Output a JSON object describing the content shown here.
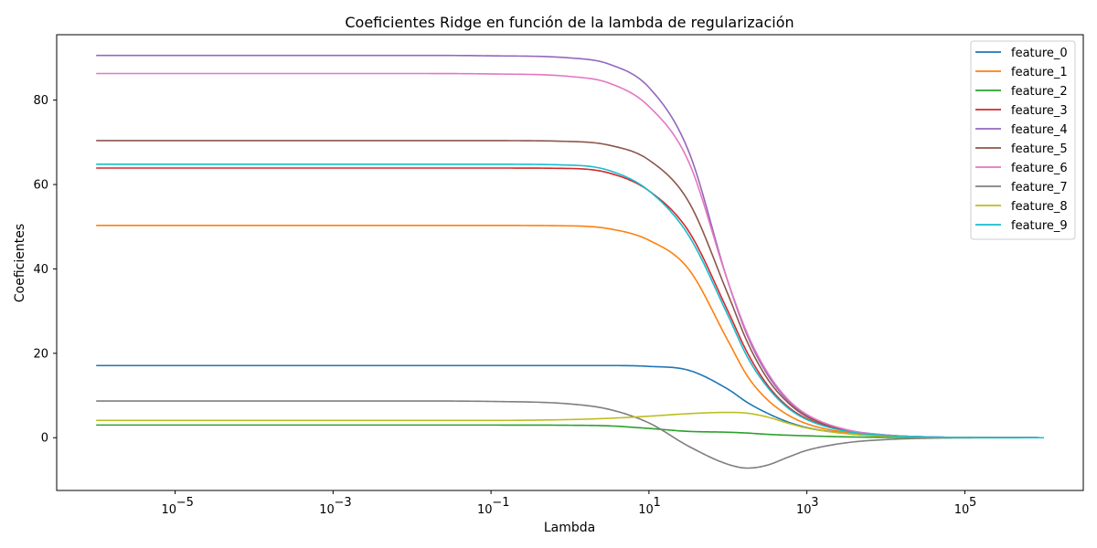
{
  "chart_data": {
    "type": "line",
    "title": "Coeficientes Ridge en función de la lambda de regularización",
    "xlabel": "Lambda",
    "ylabel": "Coeficientes",
    "xscale": "log",
    "xlim_log10": [
      -6.5,
      6.5
    ],
    "ylim": [
      -12.5,
      95.5
    ],
    "x_ticks_log10": [
      -5,
      -3,
      -1,
      1,
      3,
      5
    ],
    "x_tick_labels": [
      "10",
      "10",
      "10",
      "10",
      "10",
      "10"
    ],
    "x_tick_exponents": [
      "−5",
      "−3",
      "−1",
      "1",
      "3",
      "5"
    ],
    "y_ticks": [
      0,
      20,
      40,
      60,
      80
    ],
    "y_tick_labels": [
      "0",
      "20",
      "40",
      "60",
      "80"
    ],
    "grid": false,
    "legend_position": "top-right",
    "x_log10": [
      -6,
      -5,
      -4,
      -3,
      -2,
      -1,
      0,
      0.5,
      1,
      1.5,
      2,
      2.25,
      2.5,
      2.75,
      3,
      3.5,
      4,
      4.5,
      5,
      5.5,
      6
    ],
    "series": [
      {
        "name": "feature_0",
        "color": "#1f77b4",
        "values": [
          17.1,
          17.1,
          17.1,
          17.1,
          17.1,
          17.1,
          17.1,
          17.1,
          16.9,
          16.0,
          11.5,
          8.3,
          5.8,
          3.8,
          2.4,
          1.0,
          0.4,
          0.12,
          0.04,
          0.01,
          0
        ]
      },
      {
        "name": "feature_1",
        "color": "#ff7f0e",
        "values": [
          50.3,
          50.3,
          50.3,
          50.3,
          50.3,
          50.3,
          50.2,
          49.5,
          46.8,
          40.0,
          23.0,
          14.5,
          9.0,
          5.5,
          3.3,
          1.2,
          0.45,
          0.13,
          0.04,
          0.01,
          0
        ]
      },
      {
        "name": "feature_2",
        "color": "#2ca02c",
        "values": [
          3.0,
          3.0,
          3.0,
          3.0,
          3.0,
          3.0,
          2.95,
          2.8,
          2.2,
          1.5,
          1.3,
          1.1,
          0.8,
          0.6,
          0.45,
          0.2,
          0.08,
          0.03,
          0.01,
          0,
          0
        ]
      },
      {
        "name": "feature_3",
        "color": "#d62728",
        "values": [
          63.9,
          63.9,
          63.9,
          63.9,
          63.9,
          63.9,
          63.8,
          62.7,
          58.5,
          49.0,
          30.0,
          20.0,
          12.5,
          7.5,
          4.5,
          1.6,
          0.55,
          0.18,
          0.05,
          0.015,
          0
        ]
      },
      {
        "name": "feature_4",
        "color": "#9467bd",
        "values": [
          90.6,
          90.6,
          90.6,
          90.6,
          90.6,
          90.5,
          90.0,
          88.5,
          83.0,
          68.0,
          37.0,
          24.0,
          15.0,
          9.0,
          5.3,
          1.9,
          0.65,
          0.21,
          0.06,
          0.02,
          0
        ]
      },
      {
        "name": "feature_5",
        "color": "#8c564b",
        "values": [
          70.4,
          70.4,
          70.4,
          70.4,
          70.4,
          70.4,
          70.2,
          69.3,
          65.8,
          56.0,
          34.0,
          22.5,
          14.0,
          8.5,
          5.0,
          1.8,
          0.6,
          0.2,
          0.06,
          0.02,
          0
        ]
      },
      {
        "name": "feature_6",
        "color": "#e377c2",
        "values": [
          86.3,
          86.3,
          86.3,
          86.3,
          86.3,
          86.2,
          85.6,
          84.0,
          78.5,
          65.5,
          37.0,
          24.5,
          15.5,
          9.3,
          5.5,
          1.9,
          0.65,
          0.21,
          0.06,
          0.02,
          0
        ]
      },
      {
        "name": "feature_7",
        "color": "#7f7f7f",
        "values": [
          8.7,
          8.7,
          8.7,
          8.7,
          8.7,
          8.6,
          8.0,
          6.7,
          3.5,
          -2.0,
          -6.3,
          -7.2,
          -6.5,
          -4.7,
          -3.0,
          -1.2,
          -0.45,
          -0.14,
          -0.04,
          -0.01,
          0
        ]
      },
      {
        "name": "feature_8",
        "color": "#bcbd22",
        "values": [
          4.1,
          4.1,
          4.1,
          4.1,
          4.1,
          4.1,
          4.3,
          4.6,
          5.1,
          5.7,
          6.0,
          5.8,
          4.9,
          3.5,
          2.3,
          0.95,
          0.35,
          0.11,
          0.03,
          0.01,
          0
        ]
      },
      {
        "name": "feature_9",
        "color": "#17becf",
        "values": [
          64.8,
          64.8,
          64.8,
          64.8,
          64.8,
          64.8,
          64.6,
          63.3,
          58.5,
          48.0,
          29.0,
          19.0,
          12.0,
          7.2,
          4.3,
          1.5,
          0.55,
          0.17,
          0.05,
          0.015,
          0
        ]
      }
    ]
  }
}
